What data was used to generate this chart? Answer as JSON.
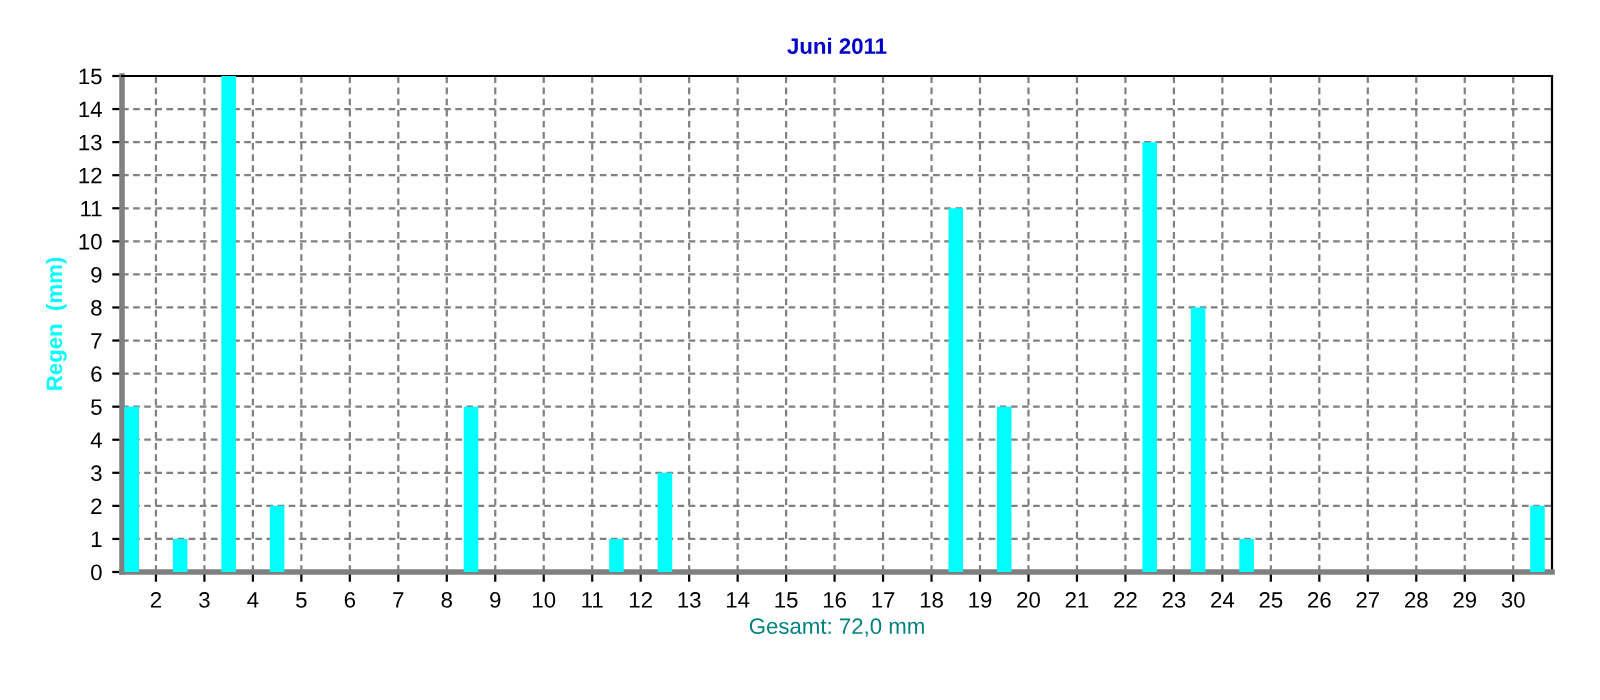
{
  "chart_data": {
    "type": "bar",
    "title": "Juni 2011",
    "ylabel": "Regen  (mm)",
    "xlabel": "Gesamt: 72,0 mm",
    "x": [
      1.5,
      2.5,
      3.5,
      4.5,
      5.5,
      6.5,
      7.5,
      8.5,
      9.5,
      10.5,
      11.5,
      12.5,
      13.5,
      14.5,
      15.5,
      16.5,
      17.5,
      18.5,
      19.5,
      20.5,
      21.5,
      22.5,
      23.5,
      24.5,
      25.5,
      26.5,
      27.5,
      28.5,
      29.5,
      30.5
    ],
    "values": [
      5,
      1,
      15,
      2,
      0,
      0,
      0,
      5,
      0,
      0,
      1,
      3,
      0,
      0,
      0,
      0,
      0,
      11,
      5,
      0,
      0,
      13,
      8,
      1,
      0,
      0,
      0,
      0,
      0,
      2
    ],
    "color": "#00ffff",
    "xlim": [
      1.3,
      30.8
    ],
    "xticks": [
      2,
      3,
      4,
      5,
      6,
      7,
      8,
      9,
      10,
      11,
      12,
      13,
      14,
      15,
      16,
      17,
      18,
      19,
      20,
      21,
      22,
      23,
      24,
      25,
      26,
      27,
      28,
      29,
      30
    ],
    "ylim": [
      0,
      15
    ],
    "yticks": [
      0,
      1,
      2,
      3,
      4,
      5,
      6,
      7,
      8,
      9,
      10,
      11,
      12,
      13,
      14,
      15
    ],
    "grid": true,
    "line_style": "dashed"
  }
}
